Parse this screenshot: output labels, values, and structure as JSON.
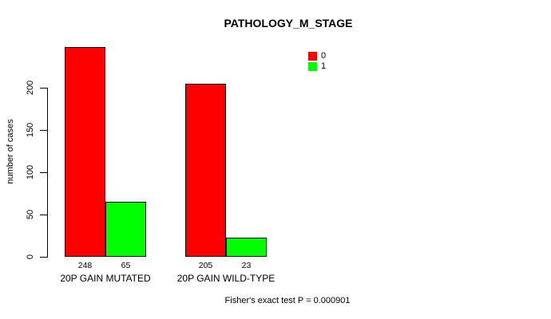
{
  "title": "PATHOLOGY_M_STAGE",
  "ylabel": "number of cases",
  "footnote": "Fisher's exact test P = 0.000901",
  "legend": {
    "items": [
      {
        "label": "0",
        "color": "#ff0000"
      },
      {
        "label": "1",
        "color": "#00ff00"
      }
    ]
  },
  "chart_data": {
    "type": "bar",
    "title": "PATHOLOGY_M_STAGE",
    "xlabel": "",
    "ylabel": "number of cases",
    "categories": [
      "20P GAIN MUTATED",
      "20P GAIN WILD-TYPE"
    ],
    "series": [
      {
        "name": "0",
        "color": "#ff0000",
        "values": [
          248,
          205
        ]
      },
      {
        "name": "1",
        "color": "#00ff00",
        "values": [
          65,
          23
        ]
      }
    ],
    "bar_value_labels": [
      [
        "248",
        "65"
      ],
      [
        "205",
        "23"
      ]
    ],
    "yticks": [
      0,
      50,
      100,
      150,
      200
    ],
    "ylim": [
      0,
      250
    ],
    "grid": false,
    "legend_position": "top-right",
    "footnote": "Fisher's exact test P = 0.000901"
  }
}
